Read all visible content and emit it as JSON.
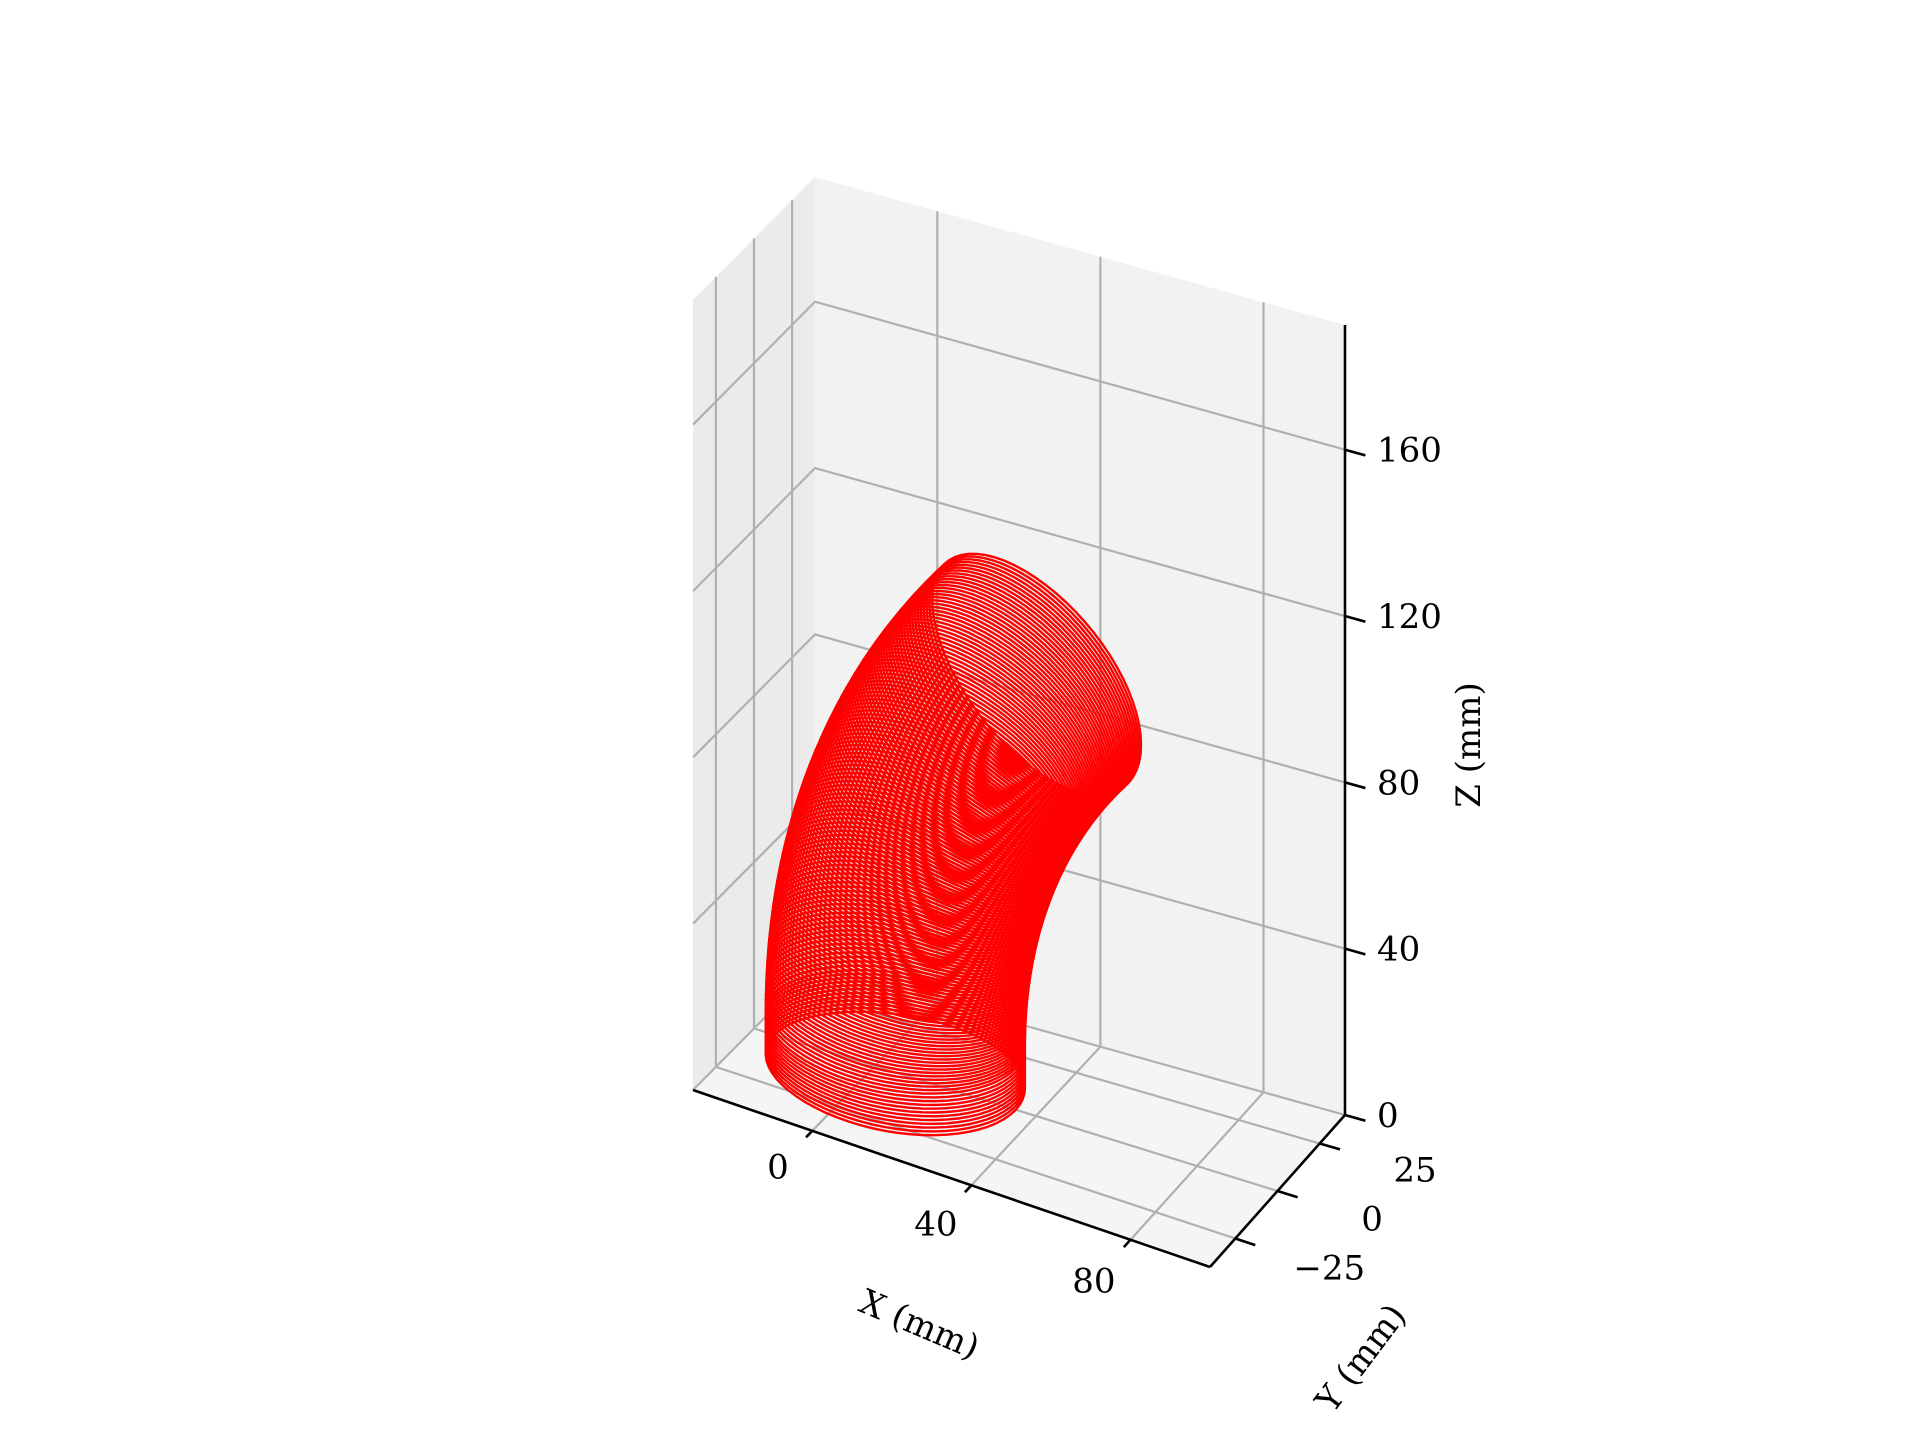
{
  "chart_data": {
    "type": "3d-line",
    "title": "",
    "xlabel": "X (mm)",
    "ylabel": "Y (mm)",
    "zlabel": "Z (mm)",
    "xlim": [
      -30,
      100
    ],
    "ylim": [
      -40,
      40
    ],
    "zlim": [
      0,
      190
    ],
    "xticks": [
      0,
      40,
      80
    ],
    "xtick_labels": [
      "0",
      "40",
      "80"
    ],
    "yticks": [
      -25,
      0,
      25
    ],
    "ytick_labels": [
      "−25",
      "0",
      "25"
    ],
    "zticks": [
      0,
      40,
      80,
      120,
      160
    ],
    "ztick_labels": [
      "0",
      "40",
      "80",
      "120",
      "160"
    ],
    "grid": true,
    "series": [
      {
        "description": "stack of circular cross-sections along a bent tube",
        "color": "#ff0000",
        "tube_radius": 30,
        "bend_radius": 150,
        "bend_angle_deg": 40,
        "straight_length": 10,
        "start_center": [
          5,
          0,
          0
        ],
        "rings_straight": 12,
        "rings_bend": 110
      }
    ]
  },
  "colors": {
    "series": "#ff0000",
    "pane_back": "#f2f2f2",
    "pane_side": "#ebebeb",
    "pane_floor": "#f5f5f5",
    "grid": "#b0b0b0",
    "axis": "#000000"
  }
}
